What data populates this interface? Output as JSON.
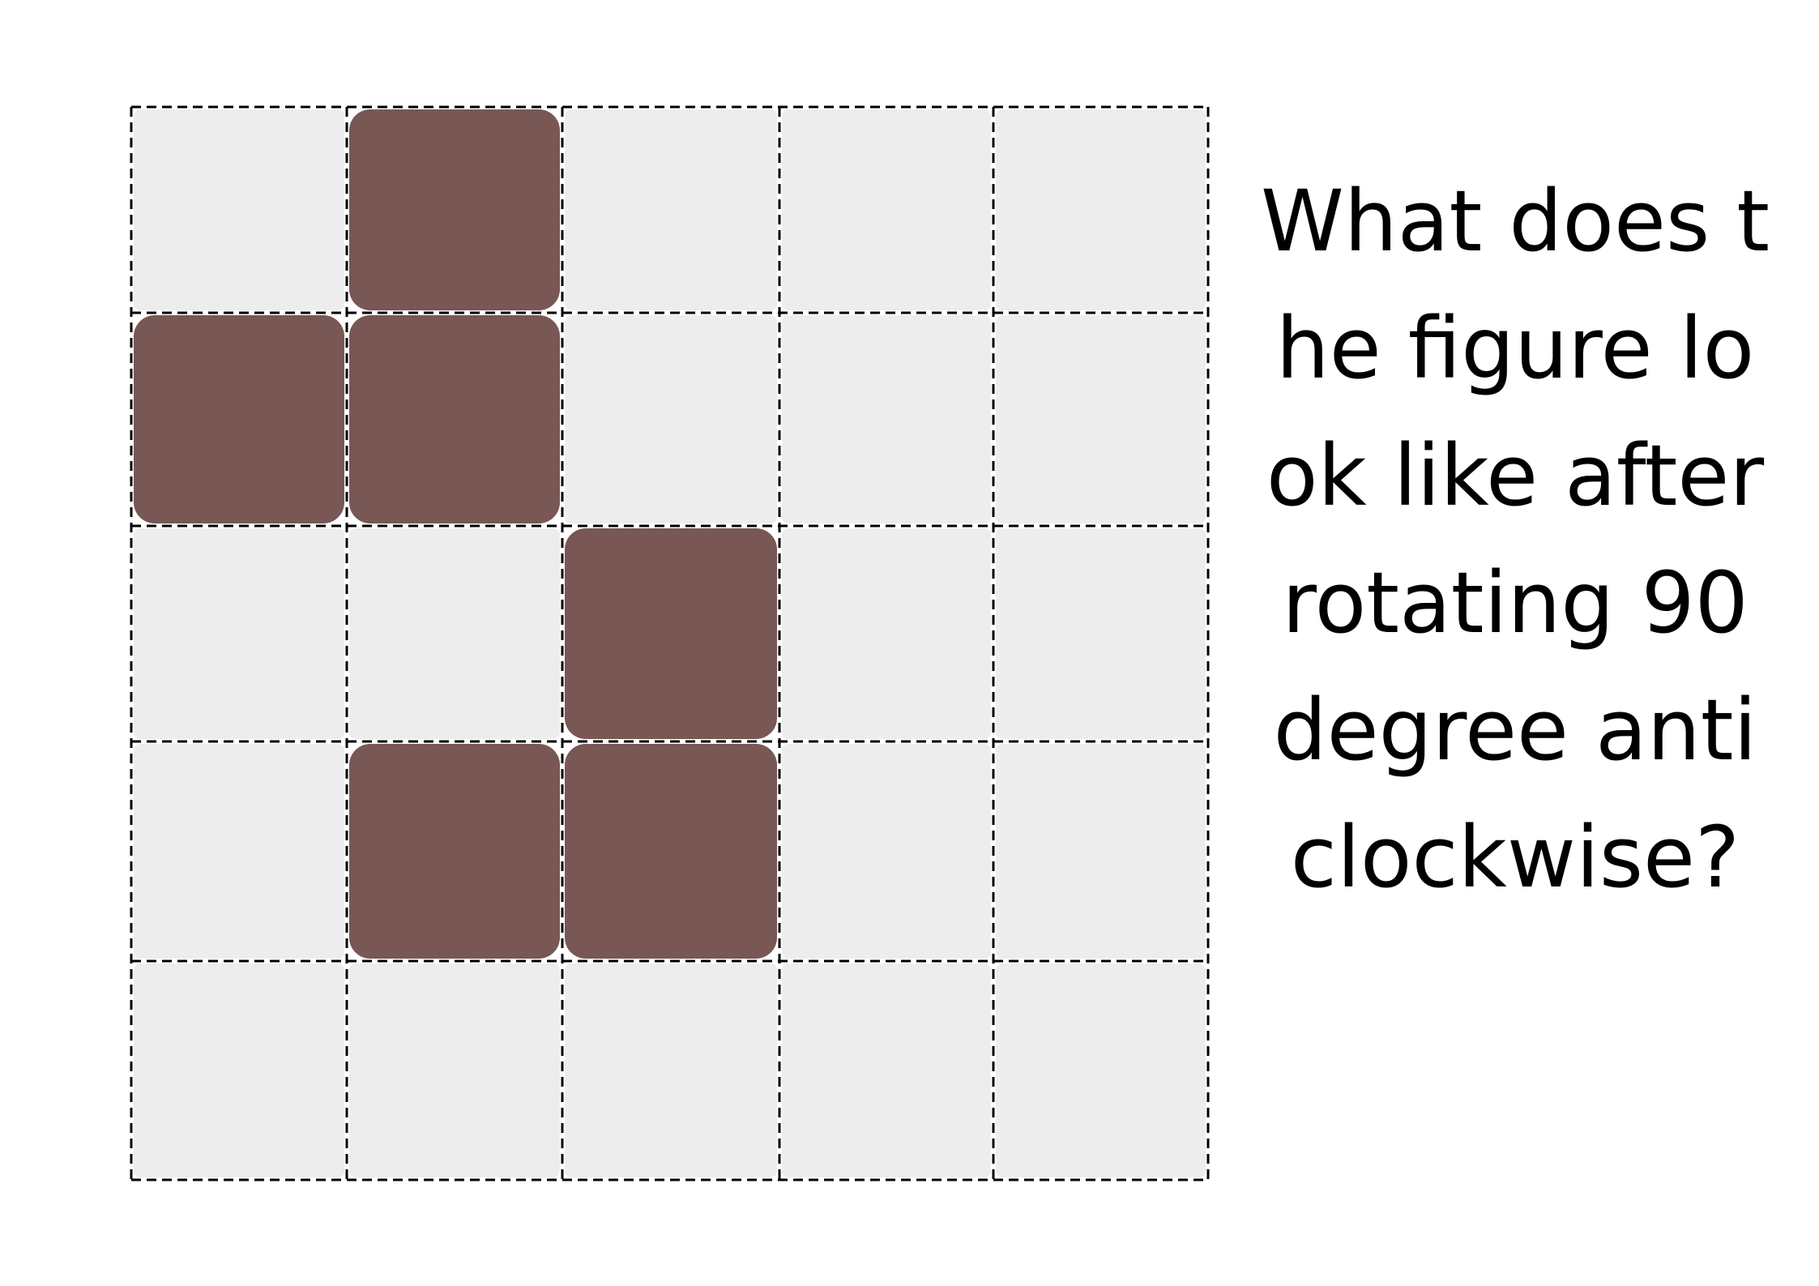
{
  "puzzle": {
    "question": "What does the figure look like after rotating 90 degree anticlockwise?"
  },
  "grid": {
    "rows": 5,
    "cols": 5,
    "filled_cells": [
      [
        0,
        1
      ],
      [
        1,
        0
      ],
      [
        1,
        1
      ],
      [
        2,
        2
      ],
      [
        3,
        1
      ],
      [
        3,
        2
      ]
    ],
    "colors": {
      "empty": "#ededed",
      "filled": "#785755",
      "line": "#000000",
      "page": "#ffffff"
    }
  }
}
